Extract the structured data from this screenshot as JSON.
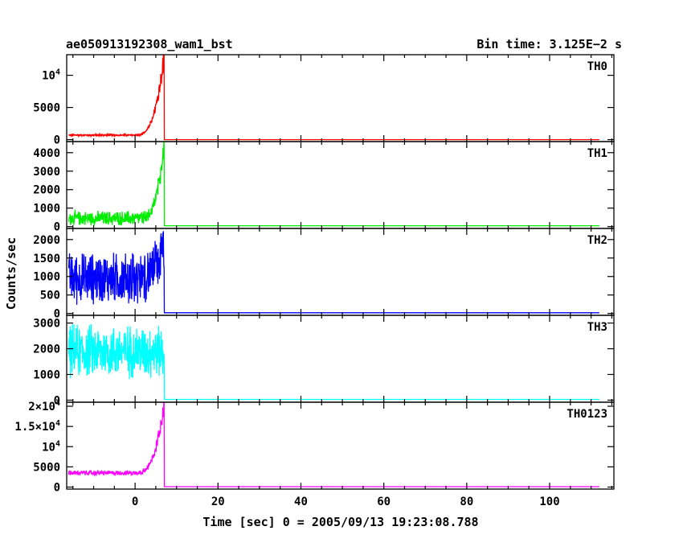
{
  "chart_data": {
    "type": "line",
    "title": "ae050913192308_wam1_bst",
    "subtitle": "Bin time: 3.125E−2 s",
    "xlabel": "Time [sec] 0 = 2005/09/13 19:23:08.788",
    "ylabel": "Counts/sec",
    "xlim": [
      -16.5,
      115.5
    ],
    "xticks": [
      0,
      20,
      40,
      60,
      80,
      100
    ],
    "xtick_labels": [
      "0",
      "20",
      "40",
      "60",
      "80",
      "100"
    ],
    "panels": [
      {
        "name": "TH0",
        "color": "#ff0000",
        "ylim": [
          -300,
          13200
        ],
        "yticks": [
          0,
          5000,
          10000
        ],
        "ytick_labels": [
          {
            "main": "0"
          },
          {
            "main": "5000"
          },
          {
            "main": "10",
            "sup": "4"
          }
        ],
        "profile": {
          "t_start": -16,
          "t_end": 112,
          "baseline": 700,
          "noise": 180,
          "rise_start": 0,
          "peak_time": 7,
          "peak_value": 13200,
          "post_level": 0
        }
      },
      {
        "name": "TH1",
        "color": "#00ee00",
        "ylim": [
          -100,
          4600
        ],
        "yticks": [
          0,
          1000,
          2000,
          3000,
          4000
        ],
        "ytick_labels": [
          {
            "main": "0"
          },
          {
            "main": "1000"
          },
          {
            "main": "2000"
          },
          {
            "main": "3000"
          },
          {
            "main": "4000"
          }
        ],
        "profile": {
          "t_start": -16,
          "t_end": 112,
          "baseline": 450,
          "noise": 450,
          "rise_start": 1,
          "peak_time": 7,
          "peak_value": 4400,
          "post_level": 50
        }
      },
      {
        "name": "TH2",
        "color": "#0000ff",
        "ylim": [
          -50,
          2300
        ],
        "yticks": [
          0,
          500,
          1000,
          1500,
          2000
        ],
        "ytick_labels": [
          {
            "main": "0"
          },
          {
            "main": "500"
          },
          {
            "main": "1000"
          },
          {
            "main": "1500"
          },
          {
            "main": "2000"
          }
        ],
        "profile": {
          "t_start": -16,
          "t_end": 112,
          "baseline": 950,
          "noise": 800,
          "rise_start": -1,
          "peak_time": 7,
          "peak_value": 1800,
          "post_level": 20
        }
      },
      {
        "name": "TH3",
        "color": "#00ffff",
        "ylim": [
          -80,
          3300
        ],
        "yticks": [
          0,
          1000,
          2000,
          3000
        ],
        "ytick_labels": [
          {
            "main": "0"
          },
          {
            "main": "1000"
          },
          {
            "main": "2000"
          },
          {
            "main": "3000"
          }
        ],
        "profile": {
          "t_start": -16,
          "t_end": 112,
          "baseline": 1900,
          "noise": 1200,
          "rise_start": 99,
          "peak_time": 7,
          "peak_value": 2000,
          "post_level": 30
        }
      },
      {
        "name": "TH0123",
        "color": "#ff00ff",
        "ylim": [
          -500,
          21000
        ],
        "yticks": [
          0,
          5000,
          10000,
          15000,
          20000
        ],
        "ytick_labels": [
          {
            "main": "0"
          },
          {
            "main": "5000"
          },
          {
            "main": "10",
            "sup": "4"
          },
          {
            "main": "1.5×10",
            "sup": "4"
          },
          {
            "main": "2×10",
            "sup": "4"
          }
        ],
        "profile": {
          "t_start": -16,
          "t_end": 112,
          "baseline": 3500,
          "noise": 700,
          "rise_start": 0,
          "peak_time": 7,
          "peak_value": 20500,
          "post_level": 100
        }
      }
    ]
  }
}
